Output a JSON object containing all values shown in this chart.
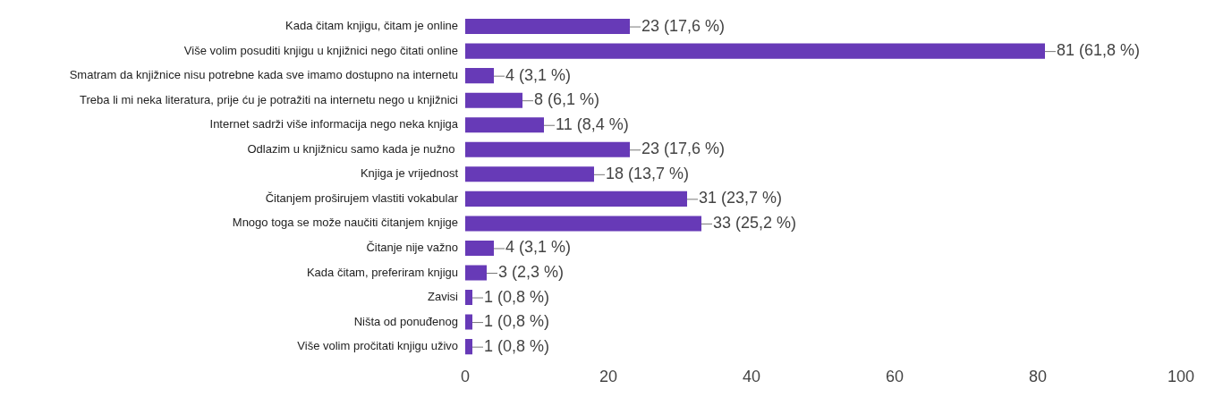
{
  "chart_data": {
    "type": "bar",
    "orientation": "horizontal",
    "categories": [
      "Kada čitam knjigu, čitam je online",
      "Više volim posuditi knjigu u knjižnici nego čitati online",
      "Smatram da knjižnice nisu potrebne kada sve imamo dostupno na internetu",
      "Treba li mi neka literatura, prije ću je potražiti na internetu nego u knjižnici",
      "Internet sadrži više informacija nego neka knjiga",
      "Odlazim u knjižnicu samo kada je nužno ",
      "Knjiga je vrijednost",
      "Čitanjem proširujem vlastiti vokabular",
      "Mnogo toga se može naučiti čitanjem knjige",
      "Čitanje nije važno",
      "Kada čitam, preferiram knjigu",
      "Zavisi",
      "Ništa od ponuđenog",
      "Više volim pročitati knjigu uživo"
    ],
    "values": [
      23,
      81,
      4,
      8,
      11,
      23,
      18,
      31,
      33,
      4,
      3,
      1,
      1,
      1
    ],
    "value_labels": [
      "23 (17,6 %)",
      "81 (61,8 %)",
      "4 (3,1 %)",
      "8 (6,1 %)",
      "11 (8,4 %)",
      "23 (17,6 %)",
      "18 (13,7 %)",
      "31 (23,7 %)",
      "33 (25,2 %)",
      "4 (3,1 %)",
      "3 (2,3 %)",
      "1 (0,8 %)",
      "1 (0,8 %)",
      "1 (0,8 %)"
    ],
    "color": "#673ab7",
    "xlim": [
      0,
      100
    ],
    "xticks": [
      0,
      20,
      40,
      60,
      80,
      100
    ],
    "grid": false,
    "legend": false
  }
}
